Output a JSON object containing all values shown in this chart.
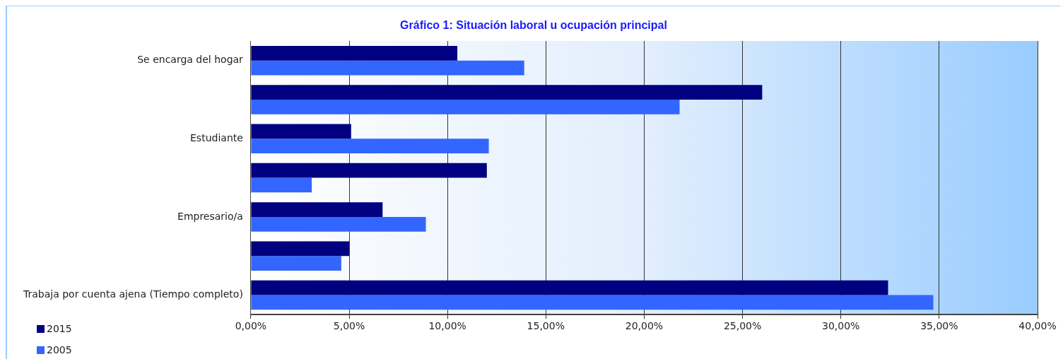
{
  "chart_data": {
    "type": "bar",
    "orientation": "horizontal",
    "title": "Gráfico 1: Situación laboral u ocupación principal",
    "categories": [
      "Se encarga del hogar",
      null,
      "Estudiante",
      null,
      "Empresario/a",
      null,
      "Trabaja por cuenta ajena (Tiempo completo)"
    ],
    "series": [
      {
        "name": "2015",
        "color": "#000080",
        "values": [
          10.5,
          26.0,
          5.1,
          12.0,
          6.7,
          5.0,
          32.4
        ]
      },
      {
        "name": "2005",
        "color": "#3366ff",
        "values": [
          13.9,
          21.8,
          12.1,
          3.1,
          8.9,
          4.6,
          34.7
        ]
      }
    ],
    "xlim": [
      0,
      40
    ],
    "xticks": [
      {
        "value": 0,
        "label": "0,00%"
      },
      {
        "value": 5,
        "label": "5,00%"
      },
      {
        "value": 10,
        "label": "10,00%"
      },
      {
        "value": 15,
        "label": "15,00%"
      },
      {
        "value": 20,
        "label": "20,00%"
      },
      {
        "value": 25,
        "label": "25,00%"
      },
      {
        "value": 30,
        "label": "30,00%"
      },
      {
        "value": 35,
        "label": "35,00%"
      },
      {
        "value": 40,
        "label": "40,00%"
      }
    ],
    "grid": "x",
    "legend": "bottom left"
  }
}
